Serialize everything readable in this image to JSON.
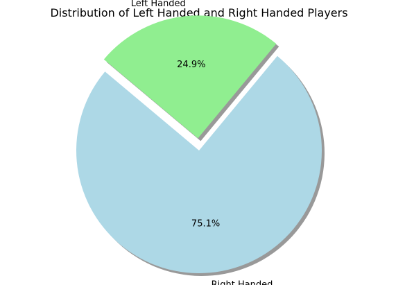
{
  "chart_data": {
    "type": "pie",
    "title": "Distribution of Left Handed and Right Handed Players",
    "slices": [
      {
        "label": "Right Handed",
        "value": 75.1,
        "pct_label": "75.1%",
        "color": "#add8e6",
        "explode": 0
      },
      {
        "label": "Left Handed",
        "value": 24.9,
        "pct_label": "24.9%",
        "color": "#90ee90",
        "explode": 0.1
      }
    ],
    "start_angle": 140,
    "shadow": true,
    "legend": false
  }
}
